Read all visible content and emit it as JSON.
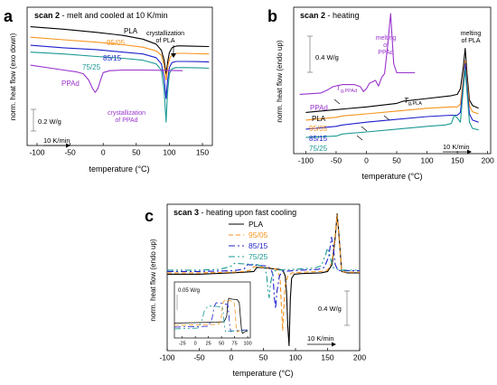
{
  "chart_data": [
    {
      "panel": "a",
      "type": "line",
      "title_bold": "scan 2",
      "title_rest": " - melt and cooled at 10 K/min",
      "xlabel": "temperature (°C)",
      "ylabel": "norm. heat flow (exo down)",
      "xlim": [
        -115,
        165
      ],
      "ylim": [
        0,
        1
      ],
      "xticks": [
        -100,
        -50,
        0,
        50,
        100,
        150
      ],
      "scale_bar": "0.2 W/g",
      "rate_label": "10 K/min",
      "annotations": [
        "crystallization of PLA",
        "crystallization of PPAd"
      ],
      "series": [
        {
          "name": "PLA",
          "color": "#000000",
          "x": [
            -110,
            -60,
            -10,
            30,
            60,
            80,
            88,
            92,
            95,
            98,
            100,
            104,
            108,
            112,
            120,
            140,
            160
          ],
          "y": [
            0.93,
            0.91,
            0.885,
            0.86,
            0.83,
            0.79,
            0.74,
            0.66,
            0.55,
            0.66,
            0.72,
            0.76,
            0.77,
            0.775,
            0.775,
            0.772,
            0.77
          ]
        },
        {
          "name": "95/05",
          "color": "#f7931e",
          "x": [
            -110,
            -60,
            -10,
            30,
            60,
            80,
            88,
            92,
            95,
            98,
            101,
            106,
            112,
            125,
            145,
            160
          ],
          "y": [
            0.845,
            0.825,
            0.805,
            0.785,
            0.765,
            0.735,
            0.7,
            0.62,
            0.5,
            0.62,
            0.68,
            0.71,
            0.715,
            0.715,
            0.712,
            0.71
          ]
        },
        {
          "name": "85/15",
          "color": "#1f1fcc",
          "x": [
            -110,
            -60,
            -10,
            30,
            60,
            80,
            88,
            92,
            95,
            97,
            100,
            104,
            110,
            125,
            145,
            160
          ],
          "y": [
            0.78,
            0.76,
            0.745,
            0.725,
            0.71,
            0.68,
            0.63,
            0.52,
            0.35,
            0.48,
            0.6,
            0.64,
            0.65,
            0.65,
            0.648,
            0.645
          ]
        },
        {
          "name": "75/25",
          "color": "#1a9993",
          "x": [
            -110,
            -60,
            -10,
            30,
            60,
            80,
            88,
            92,
            95,
            97,
            100,
            104,
            110,
            125,
            145,
            160
          ],
          "y": [
            0.725,
            0.71,
            0.69,
            0.675,
            0.66,
            0.63,
            0.58,
            0.42,
            0.16,
            0.38,
            0.55,
            0.59,
            0.6,
            0.6,
            0.598,
            0.595
          ]
        },
        {
          "name": "PPAd",
          "color": "#9933cc",
          "x": [
            -110,
            -60,
            -40,
            -30,
            -22,
            -16,
            -12,
            -8,
            -4,
            0,
            10,
            30,
            60,
            90,
            120
          ],
          "y": [
            0.62,
            0.58,
            0.565,
            0.55,
            0.5,
            0.43,
            0.4,
            0.43,
            0.5,
            0.56,
            0.575,
            0.58,
            0.58,
            0.578,
            0.575
          ]
        }
      ]
    },
    {
      "panel": "b",
      "type": "line",
      "title_bold": "scan 2",
      "title_rest": " - heating",
      "xlabel": "temperature (°C)",
      "ylabel": "norm. heat flow (endo up)",
      "xlim": [
        -120,
        205
      ],
      "ylim": [
        0,
        1
      ],
      "xticks": [
        -100,
        -50,
        0,
        50,
        100,
        150,
        200
      ],
      "scale_bar": "0.4 W/g",
      "rate_label": "10 K/min",
      "annotations": [
        "melting of PLA",
        "melting of PPAd",
        "Tg,PPAd",
        "Tg,PLA"
      ],
      "series": [
        {
          "name": "PPAd",
          "color": "#9933cc",
          "x": [
            -110,
            -75,
            -65,
            -55,
            -40,
            -20,
            -10,
            -5,
            0,
            5,
            15,
            20,
            25,
            30,
            35,
            40,
            45,
            50,
            80
          ],
          "y": [
            0.4,
            0.41,
            0.43,
            0.455,
            0.47,
            0.47,
            0.455,
            0.42,
            0.44,
            0.48,
            0.5,
            0.46,
            0.52,
            0.55,
            0.75,
            0.98,
            0.62,
            0.555,
            0.555
          ]
        },
        {
          "name": "PLA",
          "color": "#000000",
          "x": [
            -100,
            -50,
            0,
            50,
            60,
            100,
            140,
            150,
            155,
            160,
            163,
            166,
            170,
            175,
            185
          ],
          "y": [
            0.27,
            0.29,
            0.31,
            0.335,
            0.35,
            0.37,
            0.39,
            0.4,
            0.44,
            0.6,
            0.73,
            0.55,
            0.36,
            0.32,
            0.3
          ]
        },
        {
          "name": "95/05",
          "color": "#f7931e",
          "x": [
            -100,
            -50,
            -40,
            0,
            50,
            100,
            140,
            150,
            155,
            160,
            163,
            166,
            170,
            175,
            185
          ],
          "y": [
            0.215,
            0.235,
            0.245,
            0.26,
            0.28,
            0.3,
            0.31,
            0.31,
            0.33,
            0.52,
            0.64,
            0.5,
            0.32,
            0.275,
            0.26
          ]
        },
        {
          "name": "85/15",
          "color": "#1f1fcc",
          "x": [
            -100,
            -50,
            -40,
            0,
            50,
            100,
            140,
            150,
            155,
            160,
            163,
            166,
            170,
            175,
            185
          ],
          "y": [
            0.15,
            0.17,
            0.18,
            0.2,
            0.22,
            0.24,
            0.25,
            0.25,
            0.27,
            0.48,
            0.62,
            0.46,
            0.26,
            0.215,
            0.2
          ]
        },
        {
          "name": "75/25",
          "color": "#1a9993",
          "x": [
            -100,
            -50,
            -40,
            0,
            50,
            100,
            130,
            140,
            145,
            150,
            155,
            160,
            163,
            166,
            170,
            175,
            185
          ],
          "y": [
            0.09,
            0.1,
            0.115,
            0.13,
            0.15,
            0.17,
            0.18,
            0.19,
            0.25,
            0.23,
            0.2,
            0.45,
            0.58,
            0.42,
            0.2,
            0.155,
            0.145
          ]
        }
      ]
    },
    {
      "panel": "c",
      "type": "line",
      "title_bold": "scan 3",
      "title_rest": " - heating upon fast cooling",
      "xlabel": "temperature (°C)",
      "ylabel": "norm. heat flow (endo up)",
      "xlim": [
        -100,
        200
      ],
      "ylim": [
        0,
        1
      ],
      "xticks": [
        -100,
        -50,
        0,
        50,
        100,
        150,
        200
      ],
      "scale_bar": "0.4 W/g",
      "rate_label": "10 K/min",
      "series": [
        {
          "name": "PLA",
          "color": "#000000",
          "dash": "",
          "x": [
            -100,
            -50,
            0,
            20,
            35,
            40,
            55,
            65,
            75,
            80,
            84,
            86,
            88,
            90,
            92,
            94,
            98,
            110,
            140,
            150,
            157,
            162,
            165,
            168,
            172,
            180,
            200
          ],
          "y": [
            0.53,
            0.53,
            0.54,
            0.545,
            0.55,
            0.58,
            0.575,
            0.57,
            0.565,
            0.56,
            0.52,
            0.4,
            0.15,
            0.01,
            0.35,
            0.5,
            0.53,
            0.535,
            0.54,
            0.55,
            0.6,
            0.8,
            0.97,
            0.8,
            0.55,
            0.54,
            0.54
          ]
        },
        {
          "name": "95/05",
          "color": "#f7931e",
          "dash": "5,3",
          "x": [
            -100,
            -50,
            0,
            20,
            30,
            35,
            50,
            65,
            72,
            76,
            78,
            80,
            82,
            84,
            88,
            95,
            110,
            140,
            150,
            157,
            162,
            165,
            168,
            172,
            180,
            200
          ],
          "y": [
            0.54,
            0.54,
            0.545,
            0.55,
            0.56,
            0.585,
            0.58,
            0.575,
            0.56,
            0.5,
            0.3,
            0.12,
            0.3,
            0.45,
            0.52,
            0.54,
            0.545,
            0.55,
            0.56,
            0.62,
            0.82,
            0.96,
            0.78,
            0.55,
            0.545,
            0.545
          ]
        },
        {
          "name": "85/15",
          "color": "#1f1fcc",
          "dash": "7,3,2,3",
          "x": [
            -100,
            -50,
            0,
            10,
            20,
            25,
            40,
            55,
            62,
            65,
            67,
            69,
            71,
            75,
            80,
            95,
            110,
            135,
            145,
            152,
            156,
            159,
            162,
            166,
            172,
            200
          ],
          "y": [
            0.55,
            0.55,
            0.555,
            0.56,
            0.57,
            0.6,
            0.595,
            0.59,
            0.57,
            0.52,
            0.36,
            0.28,
            0.4,
            0.52,
            0.55,
            0.555,
            0.56,
            0.565,
            0.58,
            0.66,
            0.8,
            0.72,
            0.6,
            0.56,
            0.555,
            0.555
          ]
        },
        {
          "name": "75/25",
          "color": "#1a9993",
          "dash": "7,3,2,3,2,3",
          "x": [
            -100,
            -50,
            -20,
            -10,
            0,
            5,
            20,
            40,
            52,
            55,
            57,
            59,
            61,
            65,
            72,
            95,
            110,
            130,
            140,
            146,
            150,
            154,
            158,
            165,
            172,
            200
          ],
          "y": [
            0.56,
            0.56,
            0.565,
            0.575,
            0.59,
            0.61,
            0.605,
            0.6,
            0.58,
            0.52,
            0.42,
            0.36,
            0.46,
            0.55,
            0.56,
            0.565,
            0.57,
            0.575,
            0.59,
            0.66,
            0.72,
            0.66,
            0.58,
            0.565,
            0.56,
            0.56
          ]
        }
      ],
      "inset": {
        "scale_label": "0.05 W/g",
        "xlim": [
          -40,
          105
        ],
        "ylim": [
          0,
          1
        ],
        "xticks": [
          -25,
          0,
          25,
          50,
          75,
          100
        ],
        "series": [
          {
            "name": "PLA",
            "color": "#000000",
            "dash": "",
            "x": [
              -40,
              0,
              40,
              55,
              60,
              62,
              64,
              70,
              80,
              84,
              86,
              88,
              90,
              93,
              100
            ],
            "y": [
              0.25,
              0.26,
              0.27,
              0.28,
              0.4,
              0.72,
              0.8,
              0.78,
              0.77,
              0.7,
              0.4,
              0.12,
              0.02,
              0.05,
              0.08
            ]
          },
          {
            "name": "95/05",
            "color": "#f7931e",
            "dash": "5,3",
            "x": [
              -40,
              0,
              35,
              45,
              50,
              52,
              56,
              65,
              74,
              76,
              78,
              80,
              84,
              100
            ],
            "y": [
              0.2,
              0.21,
              0.22,
              0.23,
              0.4,
              0.68,
              0.76,
              0.75,
              0.72,
              0.5,
              0.15,
              0.05,
              0.08,
              0.1
            ]
          },
          {
            "name": "85/15",
            "color": "#1f1fcc",
            "dash": "7,3,2,3",
            "x": [
              -40,
              -10,
              10,
              25,
              32,
              36,
              40,
              50,
              62,
              64,
              66,
              68,
              72,
              100
            ],
            "y": [
              0.16,
              0.17,
              0.175,
              0.18,
              0.35,
              0.62,
              0.7,
              0.69,
              0.66,
              0.45,
              0.15,
              0.06,
              0.08,
              0.1
            ]
          },
          {
            "name": "75/25",
            "color": "#1a9993",
            "dash": "7,3,2,3,2,3",
            "x": [
              -40,
              -20,
              -5,
              5,
              12,
              18,
              25,
              40,
              52,
              54,
              56,
              58,
              62,
              100
            ],
            "y": [
              0.12,
              0.13,
              0.135,
              0.14,
              0.3,
              0.55,
              0.63,
              0.62,
              0.6,
              0.4,
              0.12,
              0.05,
              0.07,
              0.09
            ]
          }
        ]
      }
    }
  ]
}
